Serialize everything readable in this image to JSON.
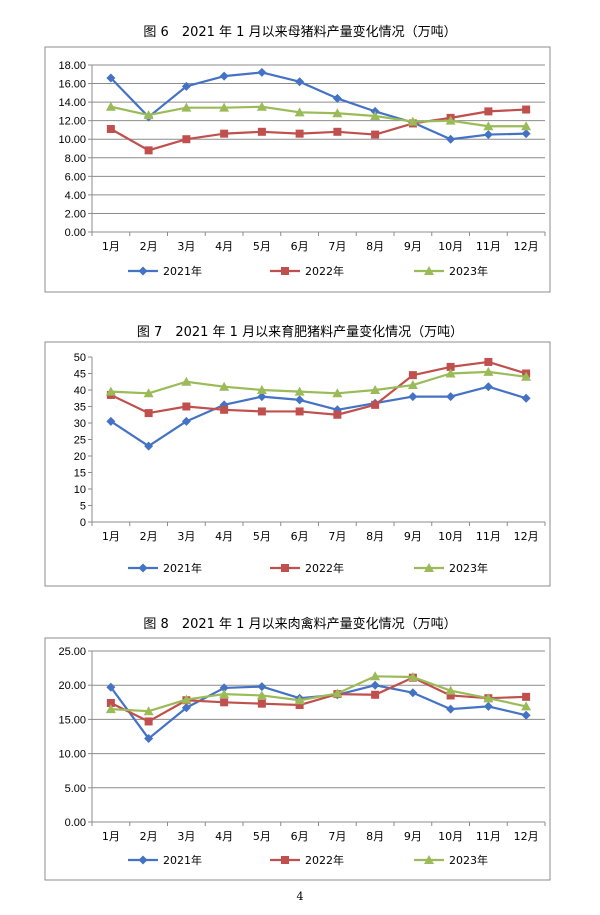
{
  "page_number": "4",
  "chart_data": [
    {
      "type": "line",
      "title": "图 6　2021 年 1 月以来母猪料产量变化情况（万吨）",
      "categories": [
        "1月",
        "2月",
        "3月",
        "4月",
        "5月",
        "6月",
        "7月",
        "8月",
        "9月",
        "10月",
        "11月",
        "12月"
      ],
      "ylim": [
        0,
        18
      ],
      "yticks": [
        "0.00",
        "2.00",
        "4.00",
        "6.00",
        "8.00",
        "10.00",
        "12.00",
        "14.00",
        "16.00",
        "18.00"
      ],
      "grid": true,
      "legend": "bottom",
      "series": [
        {
          "name": "2021年",
          "color": "#4472C4",
          "marker": "diamond",
          "values": [
            16.6,
            12.4,
            15.7,
            16.8,
            17.2,
            16.2,
            14.4,
            13.0,
            11.8,
            10.0,
            10.5,
            10.6
          ]
        },
        {
          "name": "2022年",
          "color": "#C0504D",
          "marker": "square",
          "values": [
            11.1,
            8.8,
            10.0,
            10.6,
            10.8,
            10.6,
            10.8,
            10.5,
            11.7,
            12.3,
            13.0,
            13.2
          ]
        },
        {
          "name": "2023年",
          "color": "#9BBB59",
          "marker": "triangle",
          "values": [
            13.5,
            12.6,
            13.4,
            13.4,
            13.5,
            12.9,
            12.8,
            12.5,
            11.9,
            12.0,
            11.4,
            11.4
          ]
        }
      ]
    },
    {
      "type": "line",
      "title": "图 7　2021 年 1 月以来育肥猪料产量变化情况（万吨）",
      "categories": [
        "1月",
        "2月",
        "3月",
        "4月",
        "5月",
        "6月",
        "7月",
        "8月",
        "9月",
        "10月",
        "11月",
        "12月"
      ],
      "ylim": [
        0,
        50
      ],
      "yticks": [
        "0",
        "5",
        "10",
        "15",
        "20",
        "25",
        "30",
        "35",
        "40",
        "45",
        "50"
      ],
      "grid": false,
      "legend": "bottom",
      "series": [
        {
          "name": "2021年",
          "color": "#4472C4",
          "marker": "diamond",
          "values": [
            30.5,
            23.0,
            30.5,
            35.5,
            38.0,
            37.0,
            34.0,
            36.0,
            38.0,
            38.0,
            41.0,
            37.5
          ]
        },
        {
          "name": "2022年",
          "color": "#C0504D",
          "marker": "square",
          "values": [
            38.5,
            33.0,
            35.0,
            34.0,
            33.5,
            33.5,
            32.5,
            35.5,
            44.5,
            47.0,
            48.5,
            45.0
          ]
        },
        {
          "name": "2023年",
          "color": "#9BBB59",
          "marker": "triangle",
          "values": [
            39.5,
            39.0,
            42.5,
            41.0,
            40.0,
            39.5,
            39.0,
            40.0,
            41.5,
            45.0,
            45.5,
            44.0
          ]
        }
      ]
    },
    {
      "type": "line",
      "title": "图 8　2021 年 1 月以来肉禽料产量变化情况（万吨）",
      "categories": [
        "1月",
        "2月",
        "3月",
        "4月",
        "5月",
        "6月",
        "7月",
        "8月",
        "9月",
        "10月",
        "11月",
        "12月"
      ],
      "ylim": [
        0,
        25
      ],
      "yticks": [
        "0.00",
        "5.00",
        "10.00",
        "15.00",
        "20.00",
        "25.00"
      ],
      "grid": true,
      "legend": "bottom",
      "series": [
        {
          "name": "2021年",
          "color": "#4472C4",
          "marker": "diamond",
          "values": [
            19.7,
            12.2,
            16.7,
            19.6,
            19.8,
            18.1,
            18.6,
            20.0,
            18.9,
            16.5,
            16.9,
            15.6
          ]
        },
        {
          "name": "2022年",
          "color": "#C0504D",
          "marker": "square",
          "values": [
            17.4,
            14.7,
            17.8,
            17.5,
            17.3,
            17.1,
            18.7,
            18.6,
            21.1,
            18.5,
            18.1,
            18.3
          ]
        },
        {
          "name": "2023年",
          "color": "#9BBB59",
          "marker": "triangle",
          "values": [
            16.5,
            16.2,
            17.9,
            18.7,
            18.5,
            17.8,
            18.8,
            21.3,
            21.2,
            19.2,
            18.1,
            16.9
          ]
        }
      ]
    }
  ]
}
